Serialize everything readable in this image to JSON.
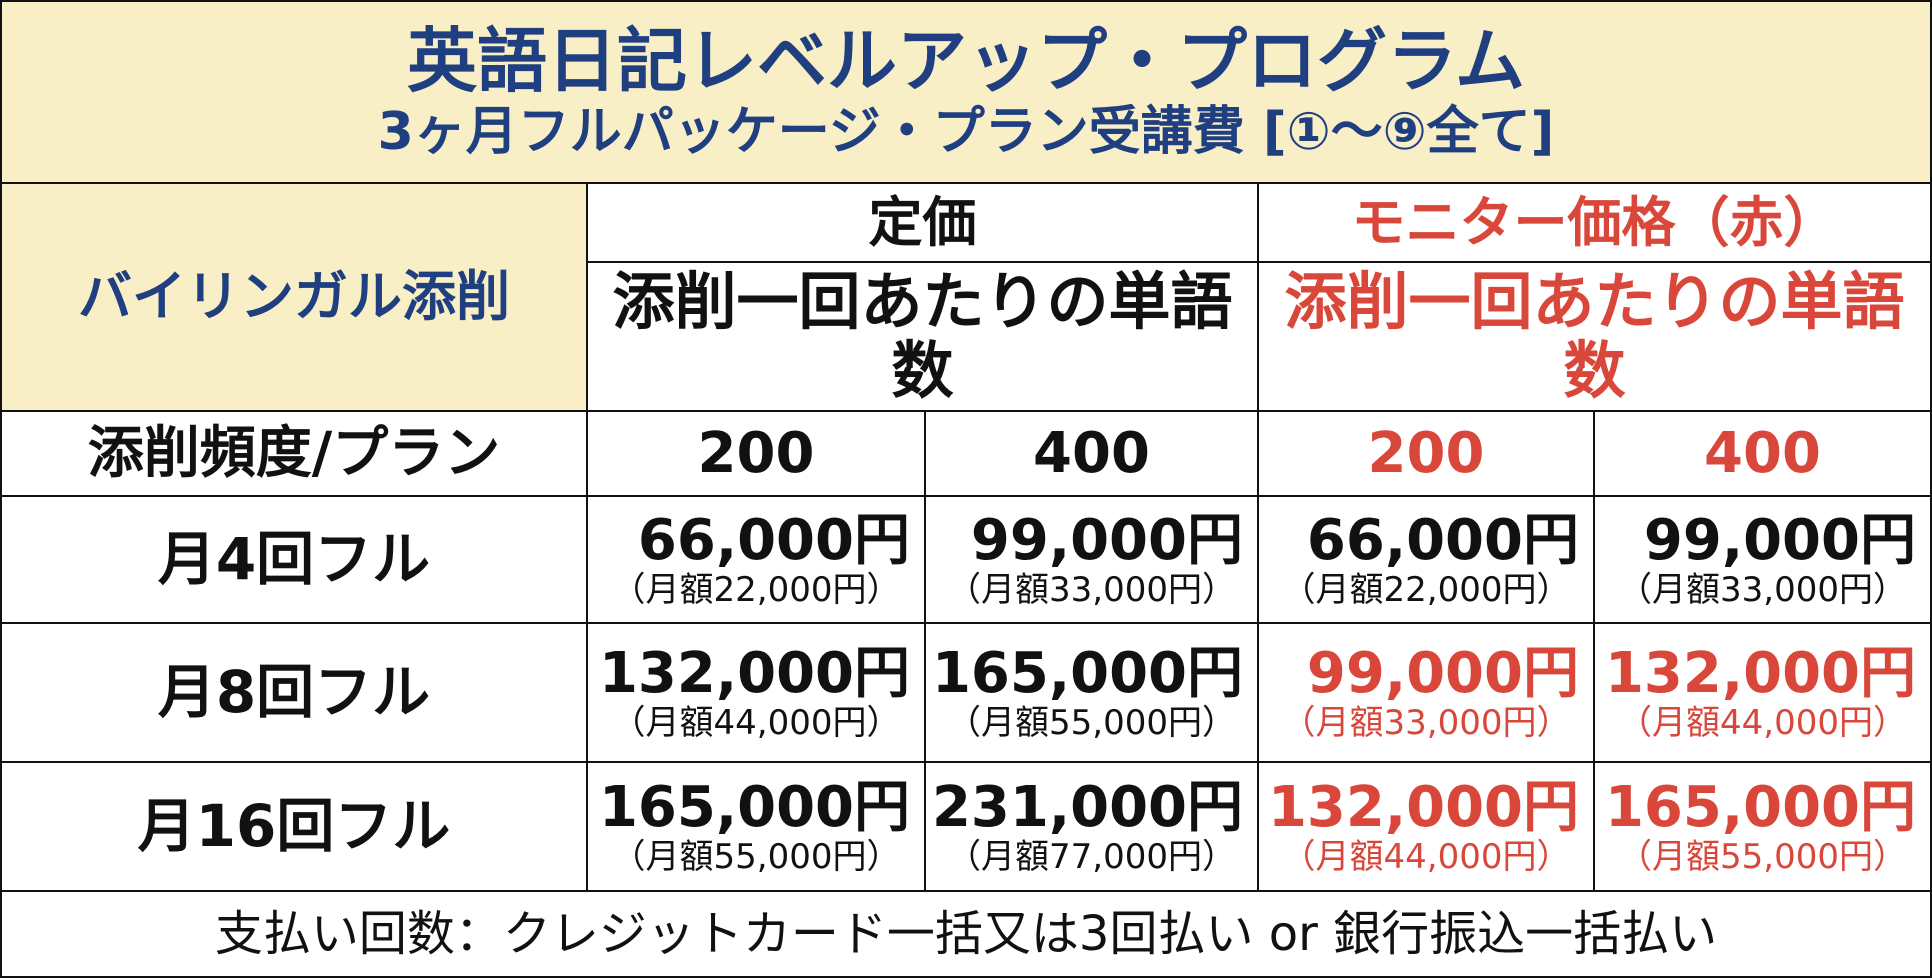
{
  "header": {
    "title": "英語日記レベルアップ・プログラム",
    "subtitle": "3ヶ月フルパッケージ・プラン受講費 [①～⑨全て]"
  },
  "table": {
    "corner": "バイリンガル添削",
    "groups": [
      {
        "label": "定価",
        "sublabel": "添削一回あたりの単語数"
      },
      {
        "label": "モニター価格（赤）",
        "sublabel": "添削一回あたりの単語数"
      }
    ],
    "row_header": "添削頻度/プラン",
    "columns": [
      200,
      400,
      200,
      400
    ],
    "rows": [
      {
        "label": "月4回フル",
        "cells": [
          {
            "price": "66,000円",
            "monthly": "（月額22,000円）"
          },
          {
            "price": "99,000円",
            "monthly": "（月額33,000円）"
          },
          {
            "price": "66,000円",
            "monthly": "（月額22,000円）"
          },
          {
            "price": "99,000円",
            "monthly": "（月額33,000円）"
          }
        ]
      },
      {
        "label": "月8回フル",
        "cells": [
          {
            "price": "132,000円",
            "monthly": "（月額44,000円）"
          },
          {
            "price": "165,000円",
            "monthly": "（月額55,000円）"
          },
          {
            "price": "99,000円",
            "monthly": "（月額33,000円）"
          },
          {
            "price": "132,000円",
            "monthly": "（月額44,000円）"
          }
        ]
      },
      {
        "label": "月16回フル",
        "cells": [
          {
            "price": "165,000円",
            "monthly": "（月額55,000円）"
          },
          {
            "price": "231,000円",
            "monthly": "（月額77,000円）"
          },
          {
            "price": "132,000円",
            "monthly": "（月額44,000円）"
          },
          {
            "price": "165,000円",
            "monthly": "（月額55,000円）"
          }
        ]
      }
    ]
  },
  "footer": "支払い回数：クレジットカード一括又は3回払い or 銀行振込一括払い"
}
